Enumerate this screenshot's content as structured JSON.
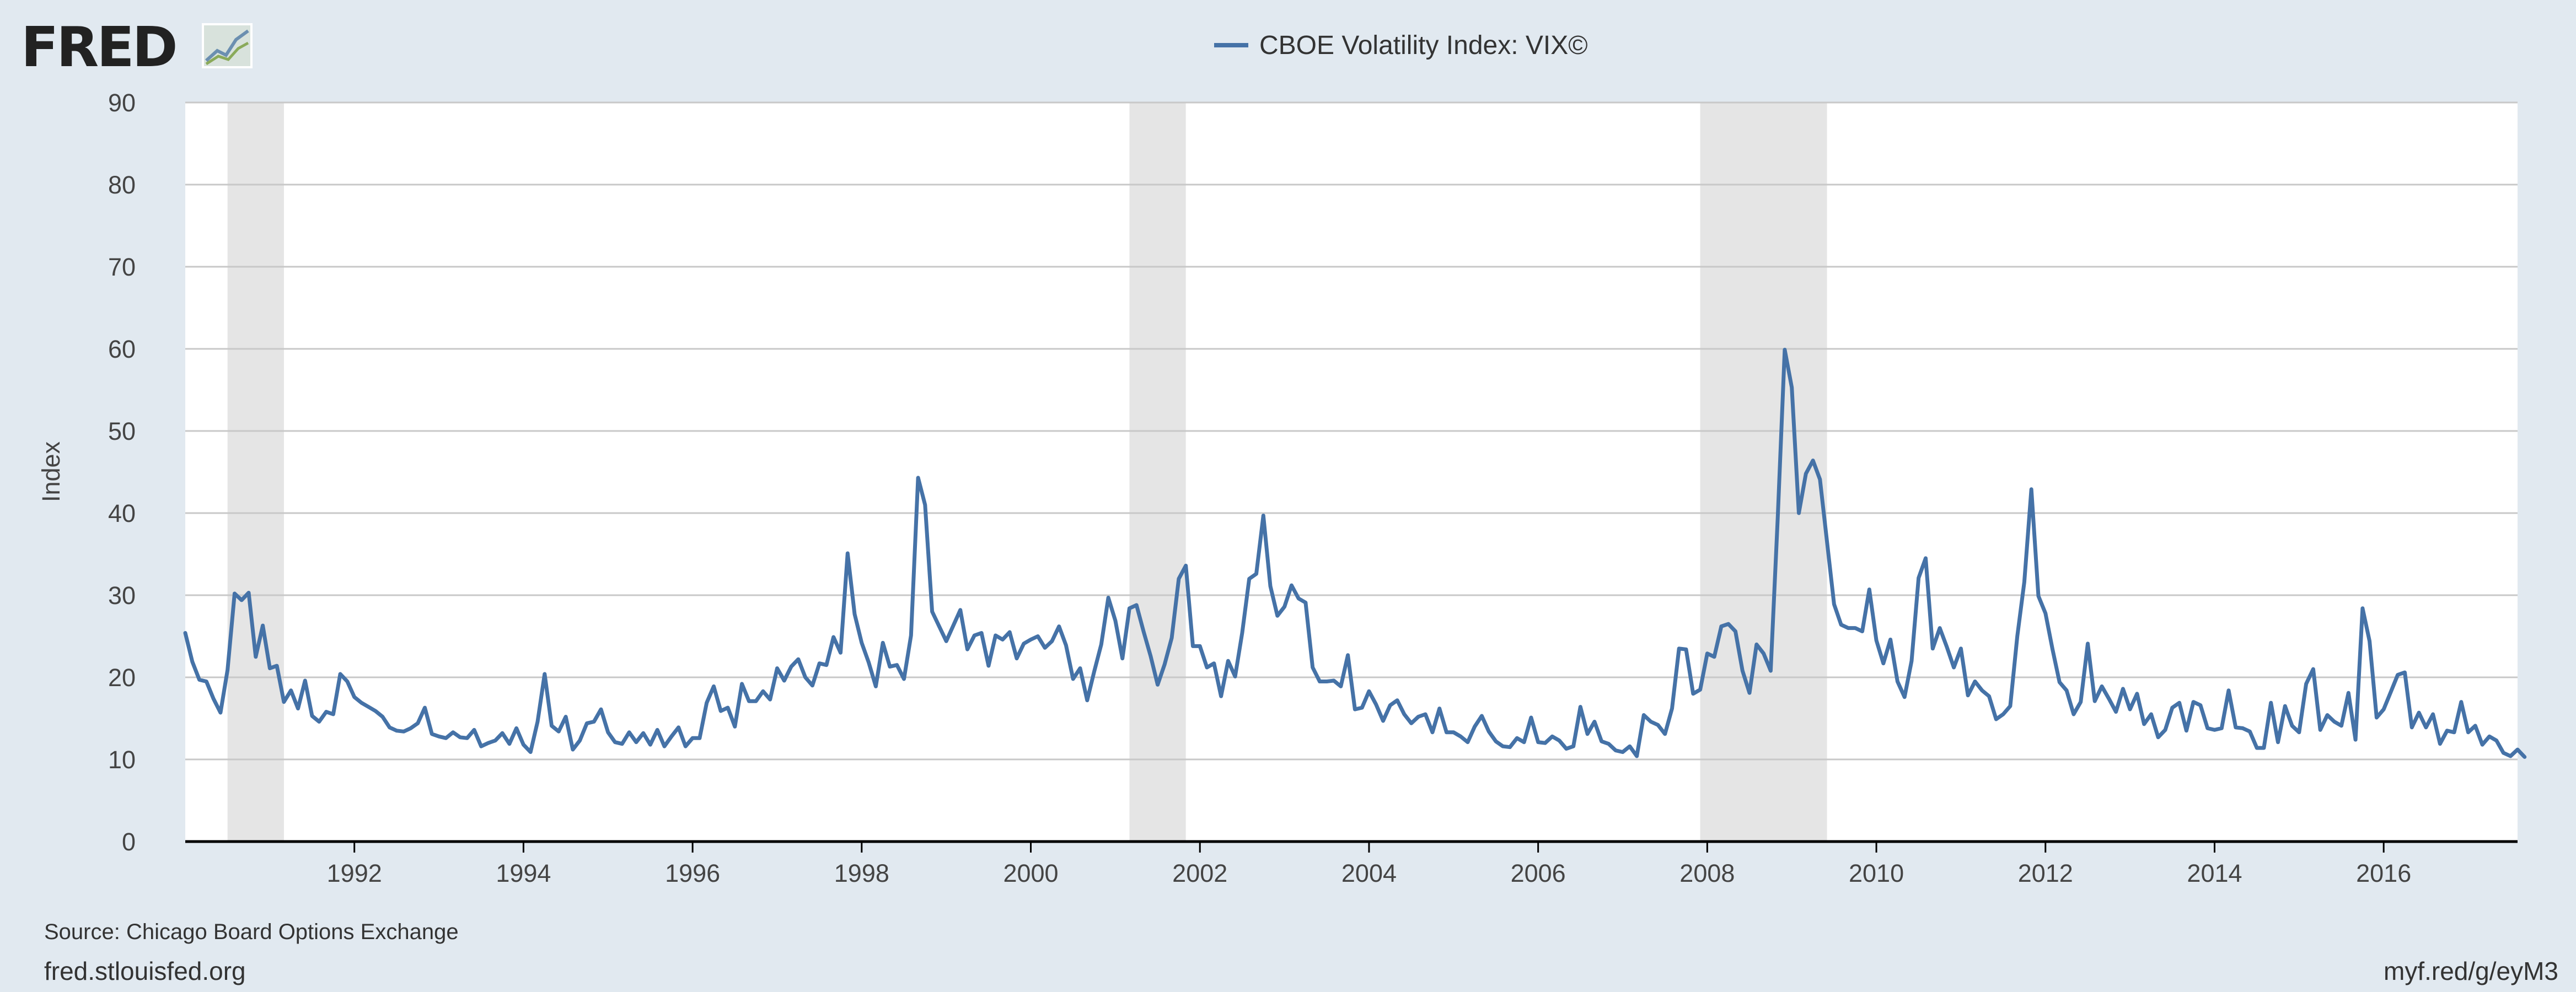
{
  "branding": {
    "logo_text": "FRED",
    "site": "fred.stlouisfed.org",
    "short_link": "myf.red/g/eyM3"
  },
  "source": "Source: Chicago Board Options Exchange",
  "colors": {
    "background": "#e1e9f0",
    "plot_background": "#ffffff",
    "series": "#4572a7",
    "recession": "#e5e5e5",
    "gridline": "#c8c8c8",
    "axis": "#000000"
  },
  "chart_data": {
    "type": "line",
    "ylabel": "Index",
    "ylim": [
      0,
      90
    ],
    "yticks": [
      0,
      10,
      20,
      30,
      40,
      50,
      60,
      70,
      80,
      90
    ],
    "xlim": [
      "1990-01-01",
      "2017-08-01"
    ],
    "xticks": [
      "1992",
      "1994",
      "1996",
      "1998",
      "2000",
      "2002",
      "2004",
      "2006",
      "2008",
      "2010",
      "2012",
      "2014",
      "2016"
    ],
    "grid": true,
    "legend_position": "top-center",
    "recessions": [
      [
        "1990-07-01",
        "1991-03-01"
      ],
      [
        "2001-03-01",
        "2001-11-01"
      ],
      [
        "2007-12-01",
        "2009-06-01"
      ]
    ],
    "series": [
      {
        "name": "CBOE Volatility Index: VIX©",
        "start": "1990-01",
        "frequency": "monthly",
        "values": [
          25.4,
          21.9,
          19.7,
          19.5,
          17.4,
          15.7,
          20.9,
          30.2,
          29.4,
          30.3,
          22.5,
          26.3,
          21.1,
          21.4,
          17.0,
          18.4,
          16.2,
          19.6,
          15.3,
          14.6,
          15.8,
          15.5,
          20.4,
          19.5,
          17.6,
          16.9,
          16.4,
          15.9,
          15.2,
          13.9,
          13.5,
          13.4,
          13.8,
          14.4,
          16.3,
          13.1,
          12.8,
          12.6,
          13.3,
          12.7,
          12.6,
          13.6,
          11.6,
          12.0,
          12.3,
          13.2,
          11.9,
          13.8,
          11.8,
          10.9,
          14.6,
          20.4,
          14.1,
          13.4,
          15.2,
          11.2,
          12.3,
          14.4,
          14.6,
          16.1,
          13.3,
          12.1,
          11.9,
          13.3,
          12.1,
          13.2,
          11.8,
          13.6,
          11.6,
          12.8,
          13.9,
          11.6,
          12.6,
          12.6,
          16.9,
          18.9,
          15.9,
          16.3,
          14.0,
          19.2,
          17.1,
          17.1,
          18.3,
          17.3,
          21.1,
          19.6,
          21.3,
          22.2,
          20.0,
          19.0,
          21.7,
          21.5,
          24.9,
          23.0,
          35.1,
          27.7,
          24.2,
          21.8,
          18.9,
          24.2,
          21.3,
          21.5,
          19.8,
          25.1,
          44.3,
          41.0,
          28.0,
          26.2,
          24.4,
          26.3,
          28.2,
          23.4,
          25.1,
          25.4,
          21.4,
          25.1,
          24.6,
          25.5,
          22.3,
          24.1,
          24.6,
          25.0,
          23.6,
          24.4,
          26.2,
          23.9,
          19.8,
          21.1,
          17.2,
          20.7,
          24.0,
          29.7,
          26.9,
          22.3,
          28.4,
          28.8,
          25.6,
          22.6,
          19.1,
          21.6,
          24.8,
          32.0,
          33.6,
          23.8,
          23.8,
          21.2,
          21.7,
          17.7,
          22.0,
          20.1,
          25.4,
          32.0,
          32.6,
          39.7,
          31.1,
          27.5,
          28.6,
          31.2,
          29.6,
          29.1,
          21.2,
          19.5,
          19.5,
          19.6,
          18.9,
          22.7,
          16.1,
          16.3,
          18.3,
          16.7,
          14.7,
          16.6,
          17.2,
          15.5,
          14.4,
          15.2,
          15.5,
          13.3,
          16.2,
          13.3,
          13.3,
          12.8,
          12.1,
          14.0,
          15.3,
          13.4,
          12.2,
          11.6,
          11.5,
          12.6,
          12.1,
          15.1,
          12.1,
          12.0,
          12.8,
          12.3,
          11.3,
          11.6,
          16.4,
          13.1,
          14.6,
          12.2,
          11.9,
          11.1,
          10.9,
          11.6,
          10.4,
          15.4,
          14.6,
          14.2,
          13.1,
          16.2,
          23.5,
          23.4,
          18.0,
          18.5,
          22.9,
          22.5,
          26.2,
          26.5,
          25.6,
          20.8,
          18.1,
          24.0,
          22.9,
          20.8,
          39.4,
          59.9,
          55.3,
          40.0,
          44.8,
          46.4,
          44.1,
          36.5,
          28.9,
          26.4,
          26.0,
          26.0,
          25.6,
          30.7,
          24.5,
          21.7,
          24.6,
          19.5,
          17.6,
          22.0,
          32.1,
          34.5,
          23.5,
          26.0,
          23.7,
          21.2,
          23.5,
          17.8,
          19.5,
          18.4,
          17.7,
          14.9,
          15.5,
          16.5,
          25.0,
          31.6,
          42.9,
          29.9,
          27.8,
          23.4,
          19.4,
          18.4,
          15.5,
          17.0,
          24.1,
          17.1,
          18.9,
          17.4,
          15.8,
          18.6,
          16.1,
          18.0,
          14.3,
          15.5,
          12.7,
          13.6,
          16.3,
          16.9,
          13.5,
          17.0,
          16.6,
          13.8,
          13.6,
          13.8,
          18.4,
          13.9,
          13.8,
          13.4,
          11.4,
          11.4,
          16.9,
          12.1,
          16.5,
          14.1,
          13.3,
          19.2,
          21.0,
          13.6,
          15.4,
          14.6,
          14.1,
          18.1,
          12.4,
          28.4,
          24.4,
          15.1,
          16.1,
          18.2,
          20.3,
          20.6,
          13.9,
          15.7,
          13.9,
          15.5,
          11.9,
          13.5,
          13.3,
          17.0,
          13.3,
          14.1,
          11.8,
          12.8,
          12.3,
          10.8,
          10.4,
          11.2,
          10.3
        ]
      }
    ]
  }
}
